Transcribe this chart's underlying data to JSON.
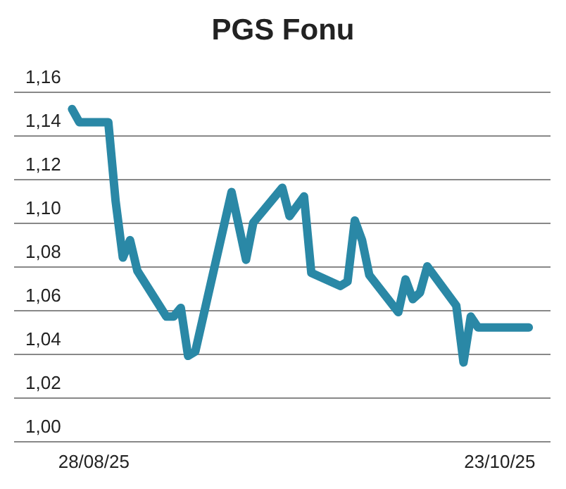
{
  "chart_data": {
    "type": "line",
    "title": "PGS Fonu",
    "x": [
      "2025-08-25",
      "2025-08-26",
      "2025-08-30",
      "2025-08-31",
      "2025-09-01",
      "2025-09-02",
      "2025-09-03",
      "2025-09-07",
      "2025-09-08",
      "2025-09-09",
      "2025-09-10",
      "2025-09-11",
      "2025-09-16",
      "2025-09-18",
      "2025-09-19",
      "2025-09-23",
      "2025-09-24",
      "2025-09-26",
      "2025-09-27",
      "2025-10-01",
      "2025-10-02",
      "2025-10-03",
      "2025-10-04",
      "2025-10-05",
      "2025-10-09",
      "2025-10-10",
      "2025-10-11",
      "2025-10-12",
      "2025-10-13",
      "2025-10-17",
      "2025-10-18",
      "2025-10-19",
      "2025-10-20",
      "2025-10-27"
    ],
    "series": [
      {
        "color": "#2a88a6",
        "values": [
          1.152,
          1.146,
          1.146,
          1.11,
          1.084,
          1.092,
          1.078,
          1.057,
          1.057,
          1.061,
          1.039,
          1.041,
          1.114,
          1.083,
          1.1,
          1.116,
          1.103,
          1.112,
          1.077,
          1.071,
          1.073,
          1.101,
          1.092,
          1.076,
          1.059,
          1.074,
          1.065,
          1.068,
          1.08,
          1.062,
          1.036,
          1.057,
          1.052,
          1.052
        ]
      }
    ],
    "xlim": [
      "2025-08-17",
      "2025-10-30"
    ],
    "xticks": [
      {
        "value": "2025-08-28",
        "label": "28/08/25"
      },
      {
        "value": "2025-10-23",
        "label": "23/10/25"
      }
    ],
    "ylim": [
      1.0,
      1.16
    ],
    "yticks": [
      {
        "value": 1.0,
        "label": "1,00"
      },
      {
        "value": 1.02,
        "label": "1,02"
      },
      {
        "value": 1.04,
        "label": "1,04"
      },
      {
        "value": 1.06,
        "label": "1,06"
      },
      {
        "value": 1.08,
        "label": "1,08"
      },
      {
        "value": 1.1,
        "label": "1,10"
      },
      {
        "value": 1.12,
        "label": "1,12"
      },
      {
        "value": 1.14,
        "label": "1,14"
      },
      {
        "value": 1.16,
        "label": "1,16"
      }
    ],
    "grid": "y",
    "marker": "none",
    "line_style": "solid"
  }
}
